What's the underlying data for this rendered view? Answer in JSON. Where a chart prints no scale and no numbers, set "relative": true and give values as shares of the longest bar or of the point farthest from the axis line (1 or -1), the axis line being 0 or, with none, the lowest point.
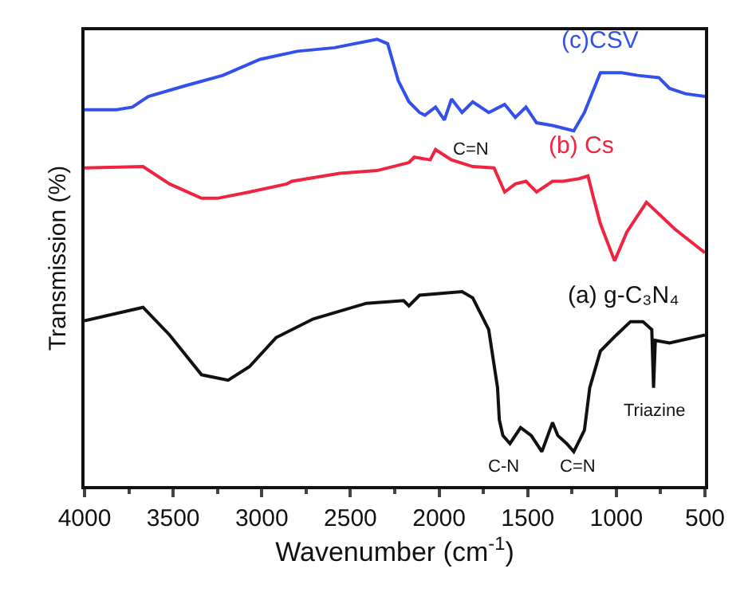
{
  "chart_data": {
    "type": "line",
    "relative": true,
    "xlabel": "Wavenumber (cm$^{-1}$)",
    "ylabel": "Transmission (%)",
    "xlim": [
      4000,
      500
    ],
    "xticks": [
      4000,
      3500,
      3000,
      2500,
      2000,
      1500,
      1000,
      500
    ],
    "tick_labels": "x",
    "legend": false,
    "marker": "none",
    "line_style": "solid",
    "series": [
      {
        "name": "(c)CSV",
        "color": "#3350ea",
        "x": [
          4000,
          3820,
          3730,
          3640,
          3430,
          3220,
          3010,
          2800,
          2590,
          2350,
          2290,
          2230,
          2170,
          2110,
          2080,
          2020,
          1970,
          1930,
          1870,
          1810,
          1720,
          1630,
          1570,
          1510,
          1450,
          1360,
          1240,
          1180,
          1090,
          970,
          880,
          760,
          700,
          610,
          500
        ],
        "values": [
          0.842,
          0.842,
          0.848,
          0.872,
          0.896,
          0.919,
          0.955,
          0.973,
          0.981,
          1,
          0.99,
          0.907,
          0.86,
          0.836,
          0.83,
          0.848,
          0.819,
          0.866,
          0.836,
          0.86,
          0.836,
          0.854,
          0.825,
          0.848,
          0.813,
          0.807,
          0.795,
          0.836,
          0.925,
          0.925,
          0.919,
          0.914,
          0.89,
          0.878,
          0.872
        ]
      },
      {
        "name": "(b) Cs",
        "color": "#ee2440",
        "x": [
          4000,
          3670,
          3520,
          3340,
          3250,
          3070,
          2860,
          2830,
          2560,
          2350,
          2170,
          2140,
          2050,
          2020,
          1930,
          1810,
          1690,
          1630,
          1570,
          1510,
          1450,
          1360,
          1300,
          1210,
          1160,
          1130,
          1090,
          1010,
          940,
          830,
          670,
          500
        ],
        "values": [
          0.712,
          0.715,
          0.676,
          0.644,
          0.644,
          0.658,
          0.676,
          0.682,
          0.7,
          0.706,
          0.724,
          0.736,
          0.73,
          0.753,
          0.73,
          0.715,
          0.712,
          0.658,
          0.676,
          0.682,
          0.658,
          0.682,
          0.682,
          0.688,
          0.694,
          0.647,
          0.587,
          0.504,
          0.569,
          0.635,
          0.575,
          0.522
        ]
      },
      {
        "name": "(a) g-C₃N₄",
        "color": "#111111",
        "x": [
          4000,
          3670,
          3520,
          3340,
          3190,
          3070,
          2920,
          2710,
          2410,
          2200,
          2170,
          2110,
          1870,
          1810,
          1720,
          1670,
          1660,
          1640,
          1600,
          1540,
          1480,
          1420,
          1360,
          1330,
          1280,
          1240,
          1180,
          1150,
          1090,
          1000,
          920,
          850,
          800,
          790,
          780,
          700,
          500
        ],
        "values": [
          0.37,
          0.4,
          0.338,
          0.249,
          0.237,
          0.267,
          0.332,
          0.374,
          0.409,
          0.415,
          0.403,
          0.427,
          0.435,
          0.421,
          0.35,
          0.22,
          0.148,
          0.113,
          0.095,
          0.131,
          0.113,
          0.077,
          0.142,
          0.113,
          0.095,
          0.077,
          0.125,
          0.22,
          0.302,
          0.338,
          0.368,
          0.368,
          0.35,
          0.22,
          0.326,
          0.32,
          0.338
        ]
      }
    ],
    "annotations": [
      "C=N",
      "Triazine",
      "C-N",
      "C=N"
    ]
  }
}
